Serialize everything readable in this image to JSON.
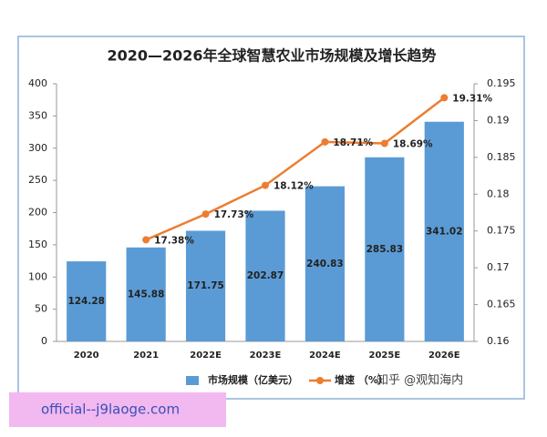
{
  "chart_data": {
    "type": "bar",
    "title": "2020—2026年全球智慧农业市场规模及增长趋势",
    "categories": [
      "2020",
      "2021",
      "2022E",
      "2023E",
      "2024E",
      "2025E",
      "2026E"
    ],
    "series": [
      {
        "name": "市场规模（亿美元）",
        "color": "#5b9bd5",
        "values": [
          124.28,
          145.88,
          171.75,
          202.87,
          240.83,
          285.83,
          341.02
        ]
      },
      {
        "name": "增速 （%）",
        "color": "#ed7d31",
        "type": "line",
        "axis": "y2",
        "values": [
          null,
          0.1738,
          0.1773,
          0.1812,
          0.1871,
          0.1869,
          0.1931
        ],
        "value_labels": [
          null,
          "17.38%",
          "17.73%",
          "18.12%",
          "18.71%",
          "18.69%",
          "19.31%"
        ]
      }
    ],
    "ylim": [
      0,
      400
    ],
    "yticks": [
      0,
      50,
      100,
      150,
      200,
      250,
      300,
      350,
      400
    ],
    "y2lim": [
      0.16,
      0.195
    ],
    "y2ticks": [
      0.16,
      0.165,
      0.17,
      0.175,
      0.18,
      0.185,
      0.19,
      0.195
    ],
    "legend": "bottom",
    "annotations": [
      "知乎 @观知海内",
      "official--j9laoge.com"
    ]
  }
}
